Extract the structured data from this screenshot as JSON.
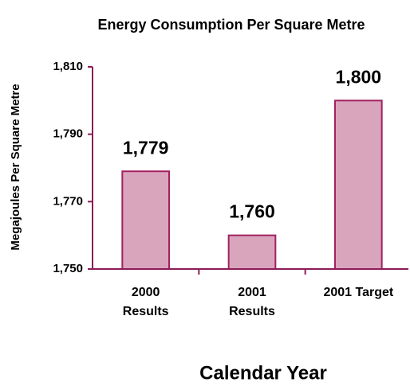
{
  "chart_data": {
    "type": "bar",
    "title": "Energy Consumption Per Square Metre",
    "categories": [
      "2000 Results",
      "2001 Results",
      "2001 Target"
    ],
    "values": [
      1779,
      1760,
      1800
    ],
    "value_labels": [
      "1,779",
      "1,760",
      "1,800"
    ],
    "color": "#d9a5bd",
    "edge_color": "#a3215f",
    "axis_color": "#8c1c59",
    "ylabel": "Megajoules Per Square Metre",
    "xlabel": "Calendar Year",
    "ylim": [
      1750,
      1810
    ],
    "yticks": [
      {
        "value": 1750,
        "label": "1,750"
      },
      {
        "value": 1770,
        "label": "1,770"
      },
      {
        "value": 1790,
        "label": "1,790"
      },
      {
        "value": 1810,
        "label": "1,810"
      }
    ],
    "grid": false
  }
}
